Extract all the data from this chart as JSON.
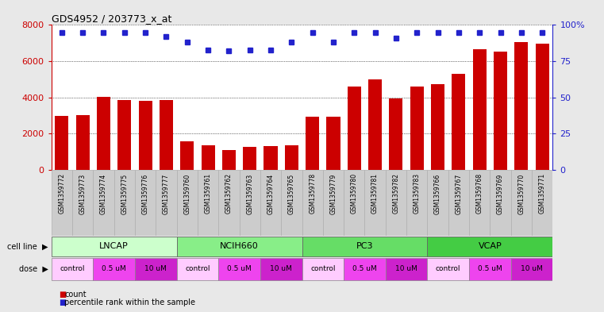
{
  "title": "GDS4952 / 203773_x_at",
  "samples": [
    "GSM1359772",
    "GSM1359773",
    "GSM1359774",
    "GSM1359775",
    "GSM1359776",
    "GSM1359777",
    "GSM1359760",
    "GSM1359761",
    "GSM1359762",
    "GSM1359763",
    "GSM1359764",
    "GSM1359765",
    "GSM1359778",
    "GSM1359779",
    "GSM1359780",
    "GSM1359781",
    "GSM1359782",
    "GSM1359783",
    "GSM1359766",
    "GSM1359767",
    "GSM1359768",
    "GSM1359769",
    "GSM1359770",
    "GSM1359771"
  ],
  "counts": [
    3000,
    3050,
    4050,
    3850,
    3800,
    3850,
    1600,
    1350,
    1100,
    1280,
    1300,
    1350,
    2950,
    2950,
    4600,
    5000,
    3950,
    4600,
    4750,
    5300,
    6650,
    6550,
    7050,
    6950
  ],
  "percentile_ranks": [
    95,
    95,
    95,
    95,
    95,
    92,
    88,
    83,
    82,
    83,
    83,
    88,
    95,
    88,
    95,
    95,
    91,
    95,
    95,
    95,
    95,
    95,
    95,
    95
  ],
  "cell_lines": [
    {
      "name": "LNCAP",
      "start": 0,
      "end": 6,
      "color": "#ccffcc"
    },
    {
      "name": "NCIH660",
      "start": 6,
      "end": 12,
      "color": "#88ee88"
    },
    {
      "name": "PC3",
      "start": 12,
      "end": 18,
      "color": "#66dd66"
    },
    {
      "name": "VCAP",
      "start": 18,
      "end": 24,
      "color": "#44cc44"
    }
  ],
  "dose_groups": [
    {
      "label": "control",
      "start": 0,
      "end": 2,
      "color": "#ffccff"
    },
    {
      "label": "0.5 uM",
      "start": 2,
      "end": 4,
      "color": "#ee44ee"
    },
    {
      "label": "10 uM",
      "start": 4,
      "end": 6,
      "color": "#cc22cc"
    },
    {
      "label": "control",
      "start": 6,
      "end": 8,
      "color": "#ffccff"
    },
    {
      "label": "0.5 uM",
      "start": 8,
      "end": 10,
      "color": "#ee44ee"
    },
    {
      "label": "10 uM",
      "start": 10,
      "end": 12,
      "color": "#cc22cc"
    },
    {
      "label": "control",
      "start": 12,
      "end": 14,
      "color": "#ffccff"
    },
    {
      "label": "0.5 uM",
      "start": 14,
      "end": 16,
      "color": "#ee44ee"
    },
    {
      "label": "10 uM",
      "start": 16,
      "end": 18,
      "color": "#cc22cc"
    },
    {
      "label": "control",
      "start": 18,
      "end": 20,
      "color": "#ffccff"
    },
    {
      "label": "0.5 uM",
      "start": 20,
      "end": 22,
      "color": "#ee44ee"
    },
    {
      "label": "10 uM",
      "start": 22,
      "end": 24,
      "color": "#cc22cc"
    }
  ],
  "bar_color": "#cc0000",
  "dot_color": "#2222cc",
  "ylim_left": [
    0,
    8000
  ],
  "ylim_right": [
    0,
    100
  ],
  "yticks_left": [
    0,
    2000,
    4000,
    6000,
    8000
  ],
  "yticks_right": [
    0,
    25,
    50,
    75,
    100
  ],
  "bg_color": "#e8e8e8",
  "plot_bg": "#ffffff",
  "sample_bg": "#cccccc"
}
